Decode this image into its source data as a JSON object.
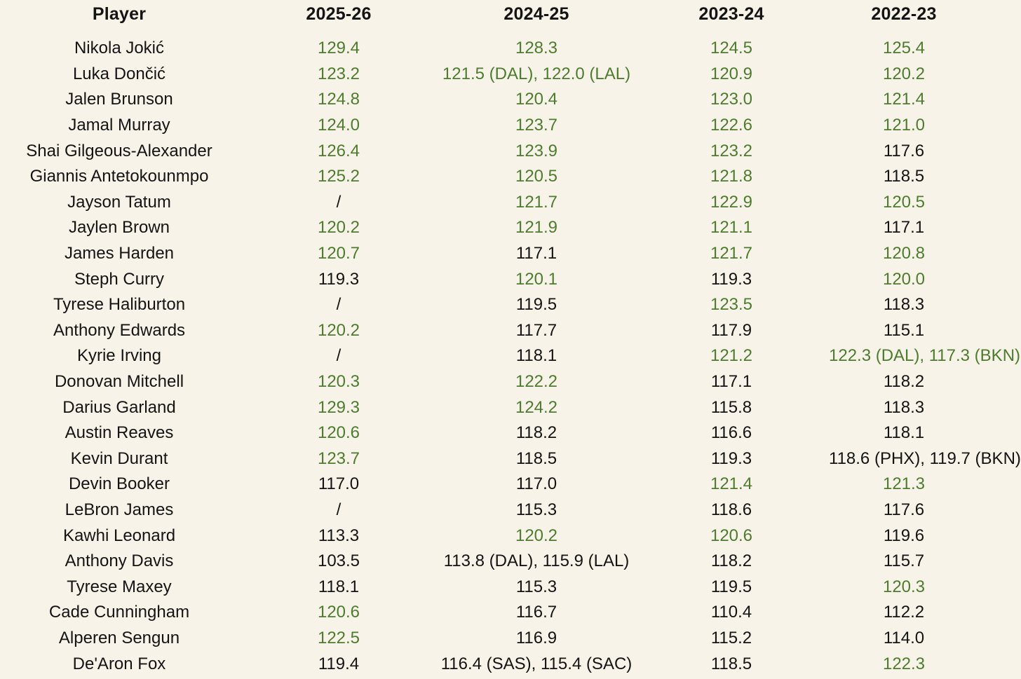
{
  "colors": {
    "background": "#f7f3e8",
    "text": "#141414",
    "highlight": "#4d7c2e"
  },
  "chart_data": {
    "type": "table",
    "title": "",
    "columns": [
      "Player",
      "2025-26",
      "2024-25",
      "2023-24",
      "2022-23"
    ],
    "highlight_meaning": "green values are offensive ratings of 120 or higher",
    "rows": [
      {
        "player": "Nikola Jokić",
        "values": [
          {
            "text": "129.4",
            "highlight": true
          },
          {
            "text": "128.3",
            "highlight": true
          },
          {
            "text": "124.5",
            "highlight": true
          },
          {
            "text": "125.4",
            "highlight": true
          }
        ]
      },
      {
        "player": "Luka Dončić",
        "values": [
          {
            "text": "123.2",
            "highlight": true
          },
          {
            "text": "121.5 (DAL), 122.0 (LAL)",
            "highlight": true
          },
          {
            "text": "120.9",
            "highlight": true
          },
          {
            "text": "120.2",
            "highlight": true
          }
        ]
      },
      {
        "player": "Jalen Brunson",
        "values": [
          {
            "text": "124.8",
            "highlight": true
          },
          {
            "text": "120.4",
            "highlight": true
          },
          {
            "text": "123.0",
            "highlight": true
          },
          {
            "text": "121.4",
            "highlight": true
          }
        ]
      },
      {
        "player": "Jamal Murray",
        "values": [
          {
            "text": "124.0",
            "highlight": true
          },
          {
            "text": "123.7",
            "highlight": true
          },
          {
            "text": "122.6",
            "highlight": true
          },
          {
            "text": "121.0",
            "highlight": true
          }
        ]
      },
      {
        "player": "Shai Gilgeous-Alexander",
        "values": [
          {
            "text": "126.4",
            "highlight": true
          },
          {
            "text": "123.9",
            "highlight": true
          },
          {
            "text": "123.2",
            "highlight": true
          },
          {
            "text": "117.6",
            "highlight": false
          }
        ]
      },
      {
        "player": "Giannis Antetokounmpo",
        "values": [
          {
            "text": "125.2",
            "highlight": true
          },
          {
            "text": "120.5",
            "highlight": true
          },
          {
            "text": "121.8",
            "highlight": true
          },
          {
            "text": "118.5",
            "highlight": false
          }
        ]
      },
      {
        "player": "Jayson Tatum",
        "values": [
          {
            "text": "/",
            "highlight": false
          },
          {
            "text": "121.7",
            "highlight": true
          },
          {
            "text": "122.9",
            "highlight": true
          },
          {
            "text": "120.5",
            "highlight": true
          }
        ]
      },
      {
        "player": "Jaylen Brown",
        "values": [
          {
            "text": "120.2",
            "highlight": true
          },
          {
            "text": "121.9",
            "highlight": true
          },
          {
            "text": "121.1",
            "highlight": true
          },
          {
            "text": "117.1",
            "highlight": false
          }
        ]
      },
      {
        "player": "James Harden",
        "values": [
          {
            "text": "120.7",
            "highlight": true
          },
          {
            "text": "117.1",
            "highlight": false
          },
          {
            "text": "121.7",
            "highlight": true
          },
          {
            "text": "120.8",
            "highlight": true
          }
        ]
      },
      {
        "player": "Steph Curry",
        "values": [
          {
            "text": "119.3",
            "highlight": false
          },
          {
            "text": "120.1",
            "highlight": true
          },
          {
            "text": "119.3",
            "highlight": false
          },
          {
            "text": "120.0",
            "highlight": true
          }
        ]
      },
      {
        "player": "Tyrese Haliburton",
        "values": [
          {
            "text": "/",
            "highlight": false
          },
          {
            "text": "119.5",
            "highlight": false
          },
          {
            "text": "123.5",
            "highlight": true
          },
          {
            "text": "118.3",
            "highlight": false
          }
        ]
      },
      {
        "player": "Anthony Edwards",
        "values": [
          {
            "text": "120.2",
            "highlight": true
          },
          {
            "text": "117.7",
            "highlight": false
          },
          {
            "text": "117.9",
            "highlight": false
          },
          {
            "text": "115.1",
            "highlight": false
          }
        ]
      },
      {
        "player": "Kyrie Irving",
        "values": [
          {
            "text": "/",
            "highlight": false
          },
          {
            "text": "118.1",
            "highlight": false
          },
          {
            "text": "121.2",
            "highlight": true
          },
          {
            "text": "122.3 (DAL), 117.3 (BKN)",
            "highlight": true
          }
        ]
      },
      {
        "player": "Donovan Mitchell",
        "values": [
          {
            "text": "120.3",
            "highlight": true
          },
          {
            "text": "122.2",
            "highlight": true
          },
          {
            "text": "117.1",
            "highlight": false
          },
          {
            "text": "118.2",
            "highlight": false
          }
        ]
      },
      {
        "player": "Darius Garland",
        "values": [
          {
            "text": "129.3",
            "highlight": true
          },
          {
            "text": "124.2",
            "highlight": true
          },
          {
            "text": "115.8",
            "highlight": false
          },
          {
            "text": "118.3",
            "highlight": false
          }
        ]
      },
      {
        "player": "Austin Reaves",
        "values": [
          {
            "text": "120.6",
            "highlight": true
          },
          {
            "text": "118.2",
            "highlight": false
          },
          {
            "text": "116.6",
            "highlight": false
          },
          {
            "text": "118.1",
            "highlight": false
          }
        ]
      },
      {
        "player": "Kevin Durant",
        "values": [
          {
            "text": "123.7",
            "highlight": true
          },
          {
            "text": "118.5",
            "highlight": false
          },
          {
            "text": "119.3",
            "highlight": false
          },
          {
            "text": "118.6 (PHX), 119.7 (BKN)",
            "highlight": false
          }
        ]
      },
      {
        "player": "Devin Booker",
        "values": [
          {
            "text": "117.0",
            "highlight": false
          },
          {
            "text": "117.0",
            "highlight": false
          },
          {
            "text": "121.4",
            "highlight": true
          },
          {
            "text": "121.3",
            "highlight": true
          }
        ]
      },
      {
        "player": "LeBron James",
        "values": [
          {
            "text": "/",
            "highlight": false
          },
          {
            "text": "115.3",
            "highlight": false
          },
          {
            "text": "118.6",
            "highlight": false
          },
          {
            "text": "117.6",
            "highlight": false
          }
        ]
      },
      {
        "player": "Kawhi Leonard",
        "values": [
          {
            "text": "113.3",
            "highlight": false
          },
          {
            "text": "120.2",
            "highlight": true
          },
          {
            "text": "120.6",
            "highlight": true
          },
          {
            "text": "119.6",
            "highlight": false
          }
        ]
      },
      {
        "player": "Anthony Davis",
        "values": [
          {
            "text": "103.5",
            "highlight": false
          },
          {
            "text": "113.8 (DAL), 115.9 (LAL)",
            "highlight": false
          },
          {
            "text": "118.2",
            "highlight": false
          },
          {
            "text": "115.7",
            "highlight": false
          }
        ]
      },
      {
        "player": "Tyrese Maxey",
        "values": [
          {
            "text": "118.1",
            "highlight": false
          },
          {
            "text": "115.3",
            "highlight": false
          },
          {
            "text": "119.5",
            "highlight": false
          },
          {
            "text": "120.3",
            "highlight": true
          }
        ]
      },
      {
        "player": "Cade Cunningham",
        "values": [
          {
            "text": "120.6",
            "highlight": true
          },
          {
            "text": "116.7",
            "highlight": false
          },
          {
            "text": "110.4",
            "highlight": false
          },
          {
            "text": "112.2",
            "highlight": false
          }
        ]
      },
      {
        "player": "Alperen Sengun",
        "values": [
          {
            "text": "122.5",
            "highlight": true
          },
          {
            "text": "116.9",
            "highlight": false
          },
          {
            "text": "115.2",
            "highlight": false
          },
          {
            "text": "114.0",
            "highlight": false
          }
        ]
      },
      {
        "player": "De'Aron Fox",
        "values": [
          {
            "text": "119.4",
            "highlight": false
          },
          {
            "text": "116.4 (SAS), 115.4 (SAC)",
            "highlight": false
          },
          {
            "text": "118.5",
            "highlight": false
          },
          {
            "text": "122.3",
            "highlight": true
          }
        ]
      }
    ]
  }
}
